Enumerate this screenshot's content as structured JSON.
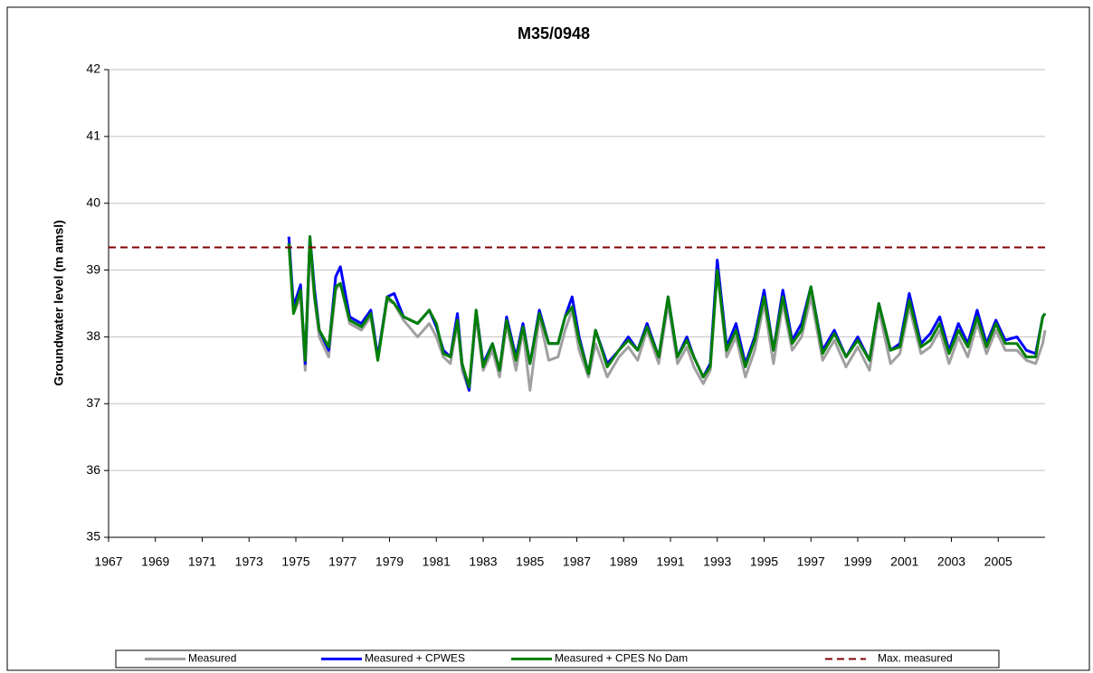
{
  "chart_data": {
    "type": "line",
    "title": "M35/0948",
    "y_label": "Groundwater level (m amsl)",
    "xlim": [
      1967,
      2007
    ],
    "xticks": [
      1967,
      1969,
      1971,
      1973,
      1975,
      1977,
      1979,
      1981,
      1983,
      1985,
      1987,
      1989,
      1991,
      1993,
      1995,
      1997,
      1999,
      2001,
      2003,
      2005
    ],
    "ylim": [
      35,
      42
    ],
    "yticks": [
      35,
      36,
      37,
      38,
      39,
      40,
      41,
      42
    ],
    "grid": true,
    "legend": "bottom",
    "x": [
      1974.7,
      1974.9,
      1975.2,
      1975.4,
      1975.6,
      1975.8,
      1976.0,
      1976.4,
      1976.7,
      1976.9,
      1977.3,
      1977.8,
      1978.2,
      1978.5,
      1978.9,
      1979.2,
      1979.6,
      1980.2,
      1980.7,
      1981.0,
      1981.3,
      1981.6,
      1981.9,
      1982.1,
      1982.4,
      1982.7,
      1983.0,
      1983.4,
      1983.7,
      1984.0,
      1984.4,
      1984.7,
      1985.0,
      1985.4,
      1985.8,
      1986.2,
      1986.5,
      1986.8,
      1987.1,
      1987.5,
      1987.8,
      1988.3,
      1988.8,
      1989.2,
      1989.6,
      1990.0,
      1990.5,
      1990.9,
      1991.3,
      1991.7,
      1992.0,
      1992.4,
      1992.7,
      1993.0,
      1993.4,
      1993.8,
      1994.2,
      1994.6,
      1995.0,
      1995.4,
      1995.8,
      1996.2,
      1996.6,
      1997.0,
      1997.5,
      1998.0,
      1998.5,
      1999.0,
      1999.5,
      1999.9,
      2000.4,
      2000.8,
      2001.2,
      2001.7,
      2002.1,
      2002.5,
      2002.9,
      2003.3,
      2003.7,
      2004.1,
      2004.5,
      2004.9,
      2005.3,
      2005.8,
      2006.2,
      2006.6,
      2006.9,
      2007.0
    ],
    "series": [
      {
        "name": "Measured",
        "color": "#a0a0a0",
        "values": [
          39.4,
          38.35,
          38.6,
          37.5,
          39.3,
          38.55,
          38.0,
          37.7,
          38.7,
          38.8,
          38.2,
          38.1,
          38.3,
          37.65,
          38.55,
          38.5,
          38.25,
          38.0,
          38.2,
          38.0,
          37.7,
          37.6,
          38.2,
          37.5,
          37.2,
          38.3,
          37.5,
          37.8,
          37.4,
          38.2,
          37.5,
          38.1,
          37.2,
          38.3,
          37.65,
          37.7,
          38.1,
          38.4,
          37.8,
          37.4,
          37.9,
          37.4,
          37.7,
          37.85,
          37.65,
          38.1,
          37.6,
          38.5,
          37.6,
          37.85,
          37.55,
          37.3,
          37.5,
          39.0,
          37.7,
          38.0,
          37.4,
          37.8,
          38.5,
          37.6,
          38.5,
          37.8,
          38.0,
          38.6,
          37.65,
          37.95,
          37.55,
          37.85,
          37.5,
          38.4,
          37.6,
          37.75,
          38.45,
          37.75,
          37.85,
          38.1,
          37.6,
          38.0,
          37.7,
          38.2,
          37.75,
          38.1,
          37.8,
          37.8,
          37.65,
          37.6,
          37.9,
          38.1
        ]
      },
      {
        "name": "Measured + CPWES",
        "color": "#0000ff",
        "values": [
          39.5,
          38.45,
          38.78,
          37.6,
          39.5,
          38.7,
          38.1,
          37.8,
          38.9,
          39.05,
          38.3,
          38.2,
          38.4,
          37.7,
          38.6,
          38.65,
          38.3,
          38.2,
          38.4,
          38.15,
          37.8,
          37.7,
          38.35,
          37.6,
          37.2,
          38.4,
          37.6,
          37.9,
          37.5,
          38.3,
          37.7,
          38.2,
          37.6,
          38.4,
          37.9,
          37.9,
          38.3,
          38.6,
          38.0,
          37.45,
          38.1,
          37.6,
          37.8,
          38.0,
          37.8,
          38.2,
          37.7,
          38.6,
          37.7,
          38.0,
          37.7,
          37.4,
          37.6,
          39.15,
          37.85,
          38.2,
          37.6,
          38.0,
          38.7,
          37.8,
          38.7,
          37.95,
          38.2,
          38.75,
          37.8,
          38.1,
          37.7,
          38.0,
          37.65,
          38.5,
          37.8,
          37.9,
          38.65,
          37.9,
          38.05,
          38.3,
          37.8,
          38.2,
          37.9,
          38.4,
          37.9,
          38.25,
          37.95,
          38.0,
          37.8,
          37.75,
          38.3,
          38.35
        ]
      },
      {
        "name": "Measured + CPES No Dam",
        "color": "#008000",
        "values": [
          39.4,
          38.35,
          38.7,
          37.65,
          39.5,
          38.6,
          38.1,
          37.85,
          38.75,
          38.8,
          38.25,
          38.15,
          38.35,
          37.65,
          38.6,
          38.5,
          38.3,
          38.2,
          38.4,
          38.2,
          37.75,
          37.7,
          38.25,
          37.6,
          37.25,
          38.4,
          37.55,
          37.9,
          37.5,
          38.25,
          37.65,
          38.15,
          37.6,
          38.35,
          37.9,
          37.9,
          38.3,
          38.45,
          37.95,
          37.45,
          38.1,
          37.55,
          37.8,
          37.95,
          37.8,
          38.15,
          37.7,
          38.6,
          37.7,
          37.95,
          37.7,
          37.4,
          37.55,
          39.0,
          37.8,
          38.1,
          37.55,
          37.95,
          38.6,
          37.8,
          38.6,
          37.9,
          38.1,
          38.75,
          37.75,
          38.05,
          37.7,
          37.95,
          37.65,
          38.5,
          37.8,
          37.85,
          38.55,
          37.85,
          37.95,
          38.2,
          37.75,
          38.1,
          37.85,
          38.3,
          37.85,
          38.2,
          37.9,
          37.9,
          37.7,
          37.7,
          38.3,
          38.35
        ]
      }
    ],
    "reference_line": {
      "name": "Max. measured",
      "color": "#800000",
      "value": 39.34,
      "dashed": true
    }
  }
}
